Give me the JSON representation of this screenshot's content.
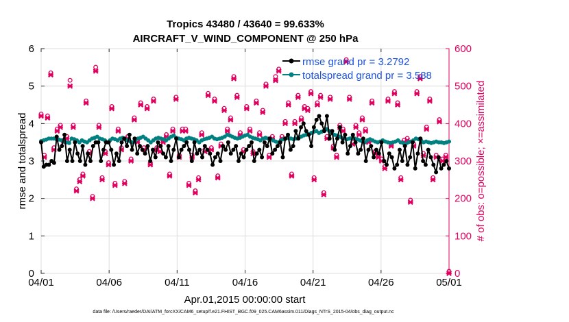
{
  "chart_data": {
    "type": "line",
    "title_line1": "Tropics 43480 / 43640 = 99.633%",
    "title_line2": "AIRCRAFT_V_WIND_COMPONENT @ 250 hPa",
    "xlabel": "Apr.01,2015 00:00:00 start",
    "ylabel_left": "rmse and totalspread",
    "ylabel_right": "# of obs: o=possible; ×=assimilated",
    "footer": "data file: /Users/raeder/DAI/ATM_forcXX/CAM6_setup/f.e21.FHIST_BGC.f09_025.CAM6assim.011/Diags_NTrS_2015-04/obs_diag_output.nc",
    "x_unit": "days since Apr 01 2015",
    "xlim": [
      0,
      30
    ],
    "ylim_left": [
      0,
      6
    ],
    "ylim_right": [
      0,
      600
    ],
    "grid": true,
    "legend_position": "top-right",
    "x_ticks": [
      {
        "value": 0,
        "label": "04/01"
      },
      {
        "value": 5,
        "label": "04/06"
      },
      {
        "value": 10,
        "label": "04/11"
      },
      {
        "value": 15,
        "label": "04/16"
      },
      {
        "value": 20,
        "label": "04/21"
      },
      {
        "value": 25,
        "label": "04/26"
      },
      {
        "value": 30,
        "label": "05/01"
      }
    ],
    "y_ticks_left": [
      0,
      1,
      2,
      3,
      4,
      5,
      6
    ],
    "y_ticks_right": [
      0,
      100,
      200,
      300,
      400,
      500,
      600
    ],
    "series": [
      {
        "name": "rmse grand",
        "legend_label": "rmse grand pr = 3.2792",
        "color": "#000000",
        "axis": "left",
        "marker": "filled-circle",
        "values": [
          3.5,
          2.85,
          2.9,
          2.9,
          3.0,
          2.95,
          3.65,
          3.3,
          3.4,
          3.7,
          3.0,
          3.3,
          3.0,
          3.5,
          3.2,
          3.0,
          3.4,
          2.9,
          3.2,
          3.0,
          3.4,
          3.5,
          3.5,
          3.0,
          3.3,
          3.5,
          3.5,
          3.3,
          2.9,
          3.2,
          3.0,
          3.5,
          3.6,
          3.4,
          3.7,
          3.3,
          3.6,
          3.2,
          3.4,
          3.3,
          3.2,
          3.4,
          3.0,
          3.3,
          3.1,
          3.5,
          3.4,
          3.2,
          3.1,
          3.4,
          3.0,
          3.3,
          3.6,
          3.1,
          3.3,
          3.4,
          3.5,
          3.3,
          3.0,
          3.5,
          3.2,
          3.3,
          3.1,
          3.4,
          3.3,
          3.2,
          2.9,
          3.1,
          3.2,
          3.0,
          3.4,
          3.3,
          3.5,
          3.2,
          3.3,
          3.4,
          3.0,
          3.2,
          3.1,
          3.3,
          3.4,
          3.5,
          3.0,
          3.2,
          3.3,
          3.1,
          3.5,
          3.4,
          3.6,
          3.2,
          3.3,
          3.4,
          3.5,
          3.1,
          3.6,
          3.7,
          3.3,
          3.4,
          3.8,
          3.6,
          3.9,
          4.0,
          3.8,
          3.7,
          3.4,
          3.9,
          4.1,
          4.2,
          4.0,
          3.8,
          4.2,
          3.6,
          3.8,
          3.3,
          3.6,
          3.9,
          3.5,
          3.7,
          3.2,
          3.4,
          3.7,
          3.5,
          3.2,
          3.3,
          3.6,
          3.0,
          3.3,
          3.4,
          3.1,
          3.3,
          3.2,
          3.5,
          3.0,
          2.9,
          3.2,
          3.1,
          2.8,
          2.9,
          3.3,
          3.0,
          3.4,
          2.9,
          3.1,
          3.5,
          2.8,
          3.2,
          3.6,
          3.0,
          2.9,
          3.3,
          3.1,
          2.9,
          2.7,
          3.1,
          2.8,
          2.9,
          3.0,
          2.8
        ],
        "note": "approximate values sampled every 0.25 day, read from gridlines"
      },
      {
        "name": "totalspread grand",
        "legend_label": "totalspread grand pr = 3.588",
        "color": "#008080",
        "axis": "left",
        "marker": "filled-circle",
        "values": [
          3.53,
          3.55,
          3.57,
          3.6,
          3.6,
          3.6,
          3.58,
          3.57,
          3.55,
          3.52,
          3.5,
          3.48,
          3.6,
          3.58,
          3.55,
          3.5,
          3.55,
          3.52,
          3.5,
          3.55,
          3.6,
          3.62,
          3.65,
          3.6,
          3.58,
          3.55,
          3.5,
          3.55,
          3.6,
          3.58,
          3.55,
          3.6,
          3.62,
          3.58,
          3.55,
          3.52,
          3.5,
          3.55,
          3.6,
          3.62,
          3.65,
          3.6,
          3.55,
          3.5,
          3.55,
          3.6,
          3.62,
          3.6,
          3.58,
          3.55,
          3.6,
          3.65,
          3.68,
          3.62,
          3.6,
          3.58,
          3.55,
          3.6,
          3.62,
          3.6,
          3.58,
          3.55,
          3.5,
          3.55,
          3.58,
          3.6,
          3.62,
          3.65,
          3.6,
          3.58,
          3.6,
          3.62,
          3.65,
          3.7,
          3.68,
          3.65,
          3.62,
          3.6,
          3.62,
          3.65,
          3.68,
          3.7,
          3.65,
          3.62,
          3.6,
          3.58,
          3.55,
          3.6,
          3.62,
          3.6,
          3.58,
          3.55,
          3.52,
          3.5,
          3.55,
          3.58,
          3.6,
          3.62,
          3.6,
          3.58,
          3.6,
          3.62,
          3.65,
          3.68,
          3.7,
          3.72,
          3.75,
          3.78,
          3.8,
          3.75,
          3.78,
          3.82,
          3.85,
          3.8,
          3.75,
          3.7,
          3.68,
          3.65,
          3.62,
          3.6,
          3.58,
          3.6,
          3.62,
          3.6,
          3.58,
          3.55,
          3.52,
          3.5,
          3.55,
          3.58,
          3.55,
          3.52,
          3.5,
          3.52,
          3.55,
          3.52,
          3.5,
          3.48,
          3.5,
          3.52,
          3.55,
          3.5,
          3.48,
          3.45,
          3.5,
          3.52,
          3.55,
          3.6,
          3.58,
          3.55,
          3.5,
          3.52,
          3.5,
          3.48,
          3.5,
          3.52,
          3.5,
          3.5,
          3.48,
          3.5,
          3.52
        ],
        "note": "approximate values sampled every 0.25 day"
      },
      {
        "name": "obs possible",
        "color": "#e0005e",
        "axis": "right",
        "marker": "open-circle",
        "values": [
          420,
          310,
          415,
          530,
          330,
          380,
          390,
          350,
          360,
          510,
          390,
          220,
          245,
          260,
          455,
          320,
          200,
          545,
          390,
          250,
          320,
          290,
          440,
          235,
          380,
          330,
          240,
          360,
          300,
          410,
          350,
          450,
          330,
          440,
          290,
          460,
          330,
          325,
          350,
          365,
          260,
          380,
          465,
          310,
          380,
          380,
          235,
          310,
          215,
          250,
          370,
          325,
          475,
          330,
          460,
          255,
          340,
          435,
          380,
          410,
          520,
          470,
          370,
          325,
          440,
          380,
          320,
          455,
          370,
          430,
          500,
          310,
          360,
          520,
          540,
          360,
          400,
          450,
          260,
          400,
          470,
          410,
          440,
          435,
          480,
          250,
          450,
          470,
          210,
          360,
          465,
          335,
          310,
          390,
          380,
          565,
          465,
          345,
          390,
          370,
          410,
          380,
          350,
          455,
          320,
          310,
          300,
          280,
          460,
          340,
          480,
          450,
          250,
          350,
          355,
          190,
          340,
          480,
          520,
          315,
          385,
          460,
          250,
          310,
          405,
          300,
          310,
          0
        ],
        "note": "approximate"
      },
      {
        "name": "obs assimilated",
        "color": "#e0005e",
        "axis": "right",
        "marker": "x",
        "values": [
          420,
          310,
          415,
          530,
          330,
          380,
          390,
          350,
          360,
          500,
          390,
          220,
          245,
          260,
          455,
          320,
          200,
          540,
          390,
          250,
          320,
          290,
          440,
          235,
          380,
          330,
          240,
          360,
          300,
          410,
          350,
          450,
          330,
          440,
          290,
          460,
          330,
          325,
          350,
          365,
          260,
          380,
          465,
          310,
          380,
          380,
          235,
          310,
          215,
          250,
          370,
          325,
          475,
          330,
          460,
          255,
          340,
          435,
          380,
          410,
          520,
          470,
          370,
          325,
          440,
          380,
          320,
          455,
          370,
          430,
          500,
          310,
          360,
          515,
          540,
          360,
          400,
          450,
          260,
          400,
          470,
          410,
          440,
          435,
          480,
          250,
          450,
          470,
          210,
          360,
          465,
          335,
          310,
          390,
          380,
          565,
          465,
          345,
          390,
          370,
          410,
          380,
          350,
          455,
          320,
          310,
          300,
          280,
          460,
          340,
          480,
          450,
          250,
          350,
          355,
          190,
          340,
          480,
          520,
          315,
          385,
          460,
          250,
          310,
          405,
          300,
          310,
          0
        ],
        "note": "approximate"
      }
    ]
  }
}
